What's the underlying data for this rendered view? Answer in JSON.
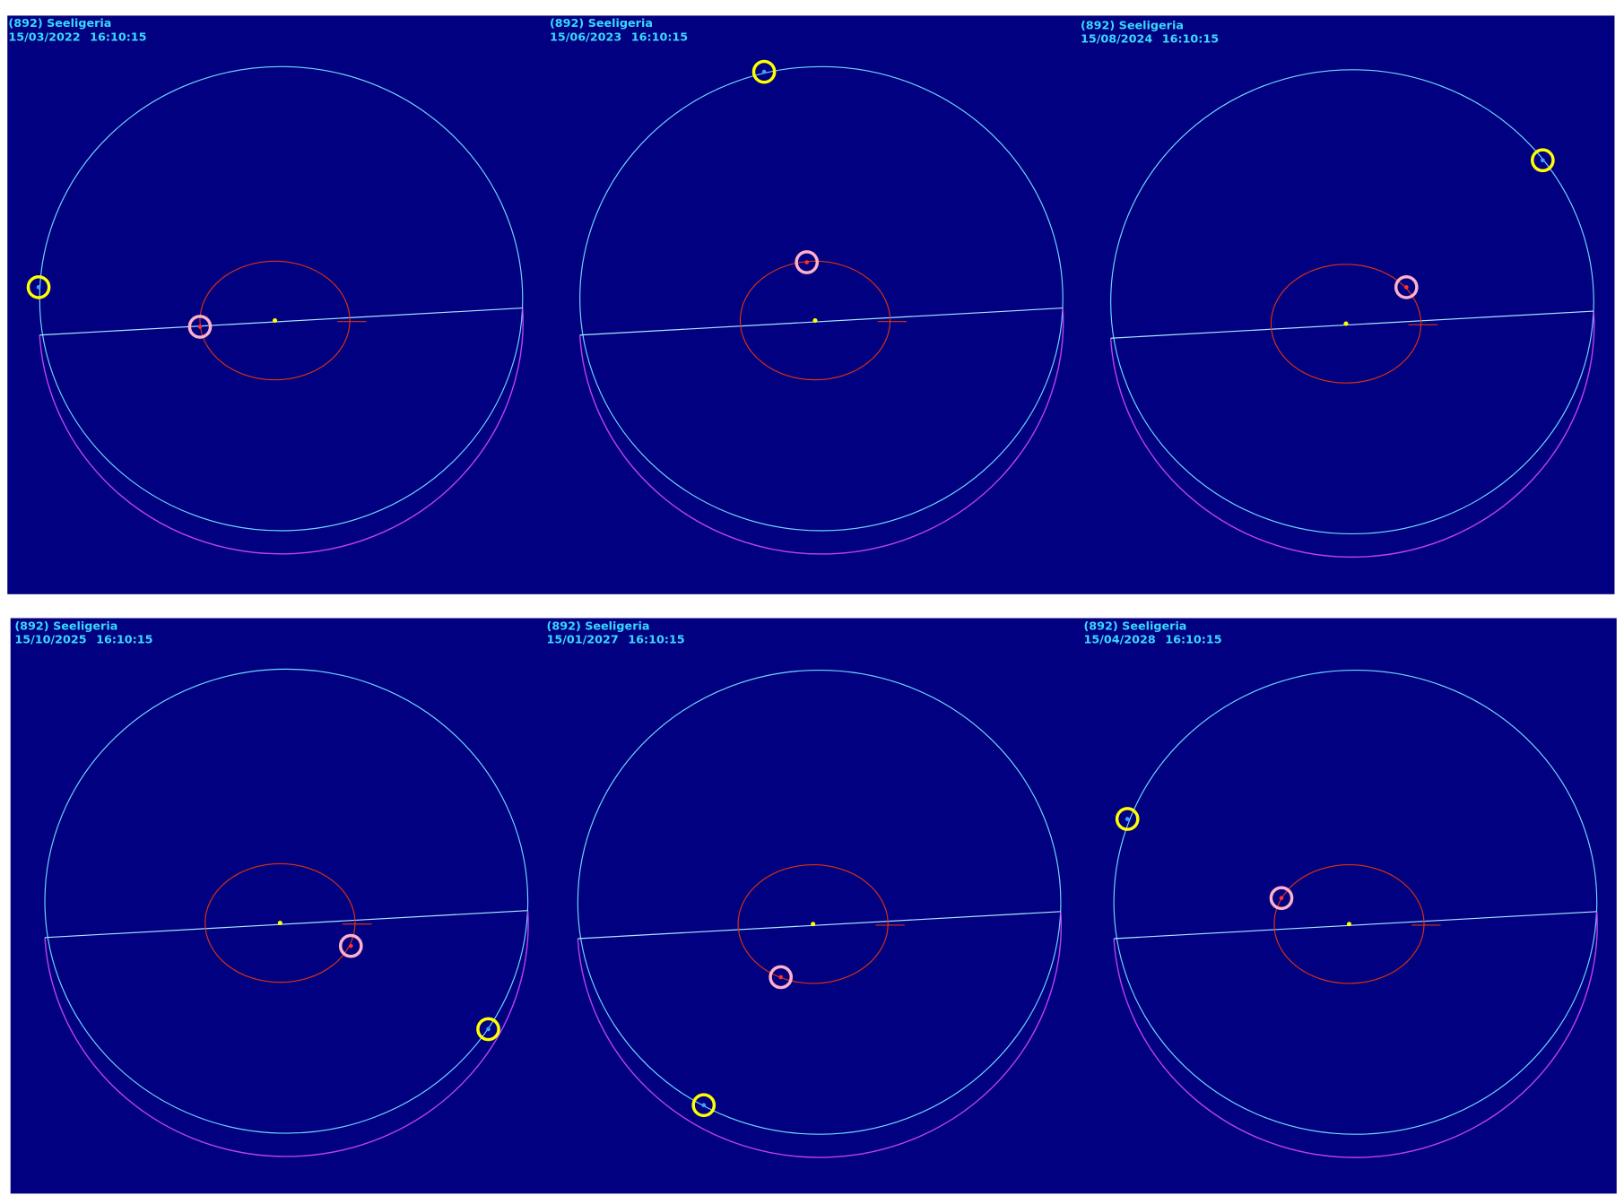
{
  "panels": [
    {
      "name": "(892) Seeligeria",
      "date": "15/03/2022",
      "time": "16:10:15"
    },
    {
      "name": "(892) Seeligeria",
      "date": "15/06/2023",
      "time": "16:10:15"
    },
    {
      "name": "(892) Seeligeria",
      "date": "15/08/2024",
      "time": "16:10:15"
    },
    {
      "name": "(892) Seeligeria",
      "date": "15/10/2025",
      "time": "16:10:15"
    },
    {
      "name": "(892) Seeligeria",
      "date": "15/01/2027",
      "time": "16:10:15"
    },
    {
      "name": "(892) Seeligeria",
      "date": "15/04/2028",
      "time": "16:10:15"
    }
  ]
}
